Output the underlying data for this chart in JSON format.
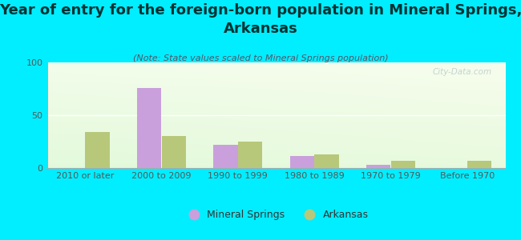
{
  "title": "Year of entry for the foreign-born population in Mineral Springs,\nArkansas",
  "subtitle": "(Note: State values scaled to Mineral Springs population)",
  "categories": [
    "2010 or later",
    "2000 to 2009",
    "1990 to 1999",
    "1980 to 1989",
    "1970 to 1979",
    "Before 1970"
  ],
  "mineral_springs": [
    0,
    76,
    22,
    11,
    3,
    0
  ],
  "arkansas": [
    34,
    30,
    25,
    13,
    7,
    7
  ],
  "mineral_color": "#c9a0dc",
  "arkansas_color": "#b8c87a",
  "ylim": [
    0,
    100
  ],
  "yticks": [
    0,
    50,
    100
  ],
  "background_color": "#00eeff",
  "watermark": "City-Data.com",
  "title_fontsize": 13,
  "title_color": "#003333",
  "subtitle_fontsize": 8,
  "subtitle_color": "#555566",
  "tick_fontsize": 8,
  "tick_color": "#555555",
  "legend_fontsize": 9,
  "legend_color": "#333333"
}
